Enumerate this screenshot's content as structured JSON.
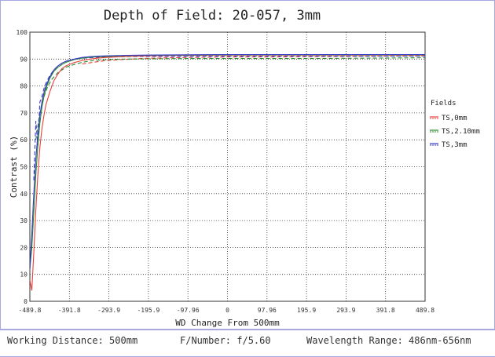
{
  "chart_data": {
    "type": "line",
    "title": "Depth of Field: 20-057, 3mm",
    "xlabel": "WD Change From 500mm",
    "ylabel": "Contrast (%)",
    "xlim": [
      -489.8,
      489.8
    ],
    "ylim": [
      0,
      100
    ],
    "x_ticks": [
      "-489.8",
      "-391.8",
      "-293.9",
      "-195.9",
      "-97.96",
      "0",
      "97.96",
      "195.9",
      "293.9",
      "391.8",
      "489.8"
    ],
    "y_ticks": [
      "0",
      "10",
      "20",
      "30",
      "40",
      "50",
      "60",
      "70",
      "80",
      "90",
      "100"
    ],
    "grid": true,
    "legend_title": "Fields",
    "legend_position": "right",
    "series": [
      {
        "name": "TS,0mm",
        "color": "#e8403c",
        "solid": {
          "x": [
            -489.8,
            -485,
            -480,
            -475,
            -470,
            -465,
            -460,
            -455,
            -450,
            -440,
            -430,
            -420,
            -410,
            -400,
            -380,
            -360,
            -340,
            -320,
            -300,
            -250,
            -200,
            -100,
            0,
            100,
            200,
            300,
            400,
            489.8
          ],
          "y": [
            8,
            4,
            18,
            34,
            47,
            57,
            64,
            69,
            73,
            78,
            82,
            84.5,
            86.5,
            87.5,
            88.7,
            89.5,
            90.0,
            90.4,
            90.6,
            91.0,
            91.2,
            91.4,
            91.5,
            91.5,
            91.5,
            91.5,
            91.5,
            91.5
          ]
        },
        "dashed": {
          "x": [
            -360,
            -300,
            -200,
            -100,
            0,
            100,
            200,
            300,
            400,
            489.8
          ],
          "y": [
            88.2,
            89.5,
            90.3,
            90.6,
            90.8,
            90.8,
            90.9,
            91.0,
            91.1,
            91.2
          ]
        }
      },
      {
        "name": "TS,2.10mm",
        "color": "#2a8a2a",
        "solid": {
          "x": [
            -489.8,
            -485,
            -480,
            -475,
            -470,
            -465,
            -460,
            -455,
            -450,
            -440,
            -430,
            -420,
            -410,
            -400,
            -380,
            -360,
            -340,
            -320,
            -300,
            -250,
            -200,
            -100,
            0,
            100,
            200,
            300,
            400,
            489.8
          ],
          "y": [
            12,
            20,
            33,
            47,
            58,
            66,
            72,
            76,
            79,
            83,
            85.5,
            87,
            88,
            88.8,
            89.8,
            90.4,
            90.7,
            90.9,
            91.0,
            91.3,
            91.4,
            91.5,
            91.6,
            91.6,
            91.6,
            91.6,
            91.6,
            91.6
          ]
        },
        "dashed": {
          "x": [
            -475,
            -465,
            -455,
            -445,
            -435,
            -420,
            -400,
            -380,
            -360,
            -340,
            -320,
            -300,
            -250,
            -200,
            -100,
            0,
            100,
            200,
            300,
            400,
            489.8
          ],
          "y": [
            60,
            70,
            76,
            80,
            82.5,
            85,
            87,
            88,
            88.8,
            89.3,
            89.6,
            89.8,
            90.0,
            90.1,
            90.2,
            90.2,
            90.2,
            90.2,
            90.3,
            90.4,
            90.5
          ]
        }
      },
      {
        "name": "TS,3mm",
        "color": "#3a3ac8",
        "solid": {
          "x": [
            -489.8,
            -485,
            -480,
            -475,
            -470,
            -465,
            -460,
            -455,
            -450,
            -440,
            -430,
            -420,
            -410,
            -400,
            -380,
            -360,
            -340,
            -320,
            -300,
            -250,
            -200,
            -100,
            0,
            100,
            200,
            300,
            400,
            489.8
          ],
          "y": [
            12,
            25,
            40,
            53,
            62,
            69,
            74,
            77.5,
            80,
            83.5,
            86,
            87.5,
            88.5,
            89.2,
            90.0,
            90.6,
            90.9,
            91.1,
            91.2,
            91.4,
            91.5,
            91.6,
            91.7,
            91.7,
            91.7,
            91.7,
            91.7,
            91.7
          ]
        },
        "dashed": {
          "x": [
            -480,
            -475,
            -470,
            -465,
            -460,
            -455,
            -450,
            -440,
            -430,
            -420,
            -410,
            -400,
            -380,
            -360,
            -340,
            -320,
            -300,
            -250,
            -200,
            -100,
            0,
            100,
            200,
            300,
            400,
            489.8
          ],
          "y": [
            45,
            67,
            58,
            74,
            76,
            79,
            81,
            84,
            86,
            87.5,
            88.5,
            89.2,
            89.9,
            90.3,
            90.5,
            90.7,
            90.8,
            90.9,
            91.0,
            91.0,
            91.1,
            91.1,
            91.1,
            91.1,
            91.1,
            91.1
          ]
        }
      }
    ]
  },
  "footer": {
    "working_distance": "Working Distance: 500mm",
    "f_number": "F/Number: f/5.60",
    "wavelength_range": "Wavelength Range: 486nm-656nm"
  },
  "colors": {
    "frame_border": "#a8a8e0",
    "grid": "#333333",
    "axis_text": "#333333"
  }
}
